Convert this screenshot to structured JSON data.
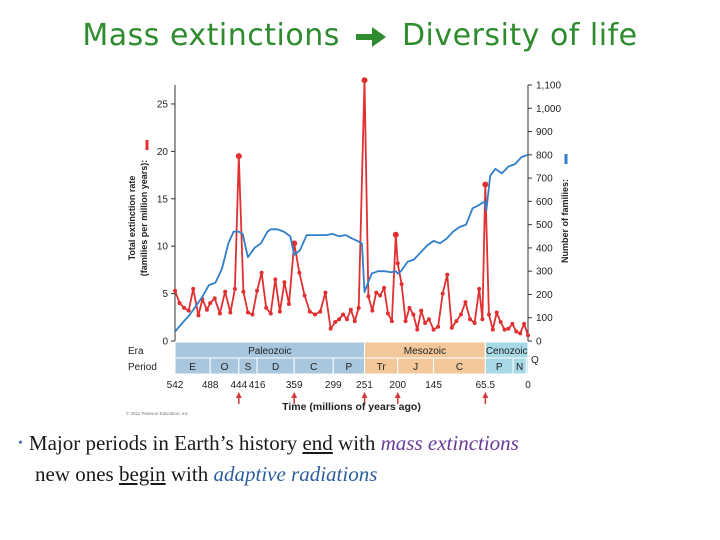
{
  "title": {
    "left": "Mass extinctions",
    "right": "Diversity of life",
    "arrow_icon": "right-arrow-icon",
    "color": "#2e8b2e"
  },
  "chart_data": {
    "type": "line",
    "left_axis": {
      "label_line1": "Total extinction rate",
      "label_line2": "(families per million years):",
      "range": [
        0,
        27
      ],
      "ticks": [
        0,
        5,
        10,
        15,
        20,
        25
      ],
      "color": "#e03030"
    },
    "right_axis": {
      "label": "Number of families:",
      "range": [
        0,
        1100
      ],
      "ticks": [
        0,
        100,
        200,
        300,
        400,
        500,
        600,
        700,
        800,
        900,
        1000,
        1100
      ],
      "tick_labels": [
        "0",
        "100",
        "200",
        "300",
        "400",
        "500",
        "600",
        "700",
        "800",
        "900",
        "1,000",
        "1,100"
      ],
      "color": "#2f7fc9"
    },
    "x_axis": {
      "label": "Time (millions of years ago)",
      "range": [
        542,
        0
      ],
      "ticks": [
        542,
        488,
        444,
        416,
        359,
        299,
        251,
        200,
        145,
        65.5,
        0
      ],
      "tick_labels": [
        "542",
        "488",
        "444",
        "416",
        "359",
        "299",
        "251",
        "200",
        "145",
        "65.5",
        "0"
      ],
      "mass_extinction_arrows": [
        444,
        359,
        251,
        200,
        65.5
      ]
    },
    "eras": {
      "row_label": "Era",
      "items": [
        {
          "name": "Paleozoic",
          "start": 542,
          "end": 251,
          "color": "#a8c6dd"
        },
        {
          "name": "Mesozoic",
          "start": 251,
          "end": 65.5,
          "color": "#f2c79a"
        },
        {
          "name": "Cenozoic",
          "start": 65.5,
          "end": 0,
          "color": "#a6d8e6"
        }
      ]
    },
    "periods": {
      "row_label": "Period",
      "items": [
        {
          "name": "E",
          "start": 542,
          "end": 488
        },
        {
          "name": "O",
          "start": 488,
          "end": 444
        },
        {
          "name": "S",
          "start": 444,
          "end": 416
        },
        {
          "name": "D",
          "start": 416,
          "end": 359
        },
        {
          "name": "C",
          "start": 359,
          "end": 299
        },
        {
          "name": "P",
          "start": 299,
          "end": 251
        },
        {
          "name": "Tr",
          "start": 251,
          "end": 200
        },
        {
          "name": "J",
          "start": 200,
          "end": 145
        },
        {
          "name": "C",
          "start": 145,
          "end": 65.5
        },
        {
          "name": "P",
          "start": 65.5,
          "end": 23
        },
        {
          "name": "N",
          "start": 23,
          "end": 2.6
        },
        {
          "name": "Q",
          "start": 2.6,
          "end": 0
        }
      ]
    },
    "series": [
      {
        "name": "Total extinction rate",
        "axis": "left",
        "color": "#e03030",
        "x": [
          542,
          535,
          528,
          521,
          514,
          506,
          500,
          493,
          488,
          481,
          473,
          465,
          457,
          450,
          444,
          437,
          430,
          423,
          416,
          409,
          402,
          395,
          388,
          381,
          374,
          367,
          359,
          351,
          343,
          335,
          327,
          319,
          311,
          303,
          296,
          290,
          284,
          278,
          272,
          266,
          260,
          251,
          245,
          239,
          233,
          227,
          221,
          215,
          209,
          203,
          200,
          194,
          188,
          182,
          176,
          170,
          164,
          158,
          152,
          145,
          138,
          131,
          124,
          117,
          110,
          103,
          96,
          89,
          82,
          75,
          70,
          65.5,
          60,
          54,
          48,
          42,
          36,
          30,
          24,
          18,
          12,
          6,
          0
        ],
        "y": [
          5.3,
          4.0,
          3.5,
          3.2,
          5.5,
          2.7,
          4.4,
          3.3,
          4.0,
          4.5,
          2.9,
          5.2,
          3.0,
          5.5,
          19.5,
          5.2,
          3.0,
          2.8,
          5.3,
          7.2,
          3.5,
          2.9,
          6.5,
          3.1,
          6.2,
          3.9,
          10.3,
          7.2,
          4.8,
          3.1,
          2.8,
          3.1,
          5.1,
          1.3,
          2.0,
          2.3,
          2.8,
          2.3,
          3.3,
          2.1,
          3.5,
          27.5,
          4.7,
          3.2,
          5.1,
          4.8,
          5.6,
          2.9,
          2.1,
          11.2,
          8.2,
          6.0,
          2.1,
          3.5,
          2.8,
          1.2,
          3.2,
          1.9,
          2.3,
          1.2,
          1.5,
          5.0,
          7.0,
          1.4,
          2.1,
          2.8,
          4.1,
          2.3,
          1.9,
          5.5,
          2.3,
          16.5,
          2.8,
          1.2,
          3.0,
          2.0,
          1.2,
          1.3,
          1.8,
          1.0,
          0.8,
          1.8,
          0.6
        ]
      },
      {
        "name": "Number of families",
        "axis": "right",
        "color": "#2f7fc9",
        "x": [
          542,
          530,
          520,
          510,
          500,
          490,
          480,
          470,
          460,
          452,
          444,
          438,
          430,
          420,
          410,
          400,
          395,
          385,
          375,
          365,
          359,
          350,
          340,
          330,
          320,
          310,
          300,
          290,
          280,
          270,
          262,
          255,
          251,
          247,
          240,
          230,
          220,
          210,
          203,
          200,
          195,
          185,
          175,
          165,
          155,
          145,
          135,
          125,
          115,
          105,
          95,
          85,
          78,
          72,
          66,
          64,
          58,
          50,
          40,
          30,
          20,
          10,
          0
        ],
        "y": [
          40,
          80,
          110,
          150,
          190,
          240,
          250,
          310,
          420,
          470,
          470,
          460,
          360,
          400,
          420,
          470,
          480,
          480,
          470,
          450,
          370,
          390,
          455,
          455,
          455,
          455,
          460,
          450,
          455,
          440,
          430,
          420,
          210,
          240,
          290,
          300,
          300,
          295,
          300,
          290,
          300,
          340,
          350,
          380,
          410,
          430,
          420,
          440,
          470,
          490,
          500,
          570,
          580,
          590,
          600,
          560,
          710,
          740,
          720,
          750,
          760,
          790,
          800
        ]
      }
    ],
    "colors": {
      "red": "#e03030",
      "blue": "#2f7fc9",
      "axis": "#333333",
      "arrow": "#d23a3a"
    },
    "credit": "© 2011 Pearson Education, Inc."
  },
  "bullet": {
    "p1": "Major periods in Earth’s history",
    "u1": "end",
    "p2": "with",
    "i1": "mass extinctions",
    "p3": "new ones",
    "u2": "begin",
    "p4": "with",
    "i2": "adaptive radiations"
  }
}
